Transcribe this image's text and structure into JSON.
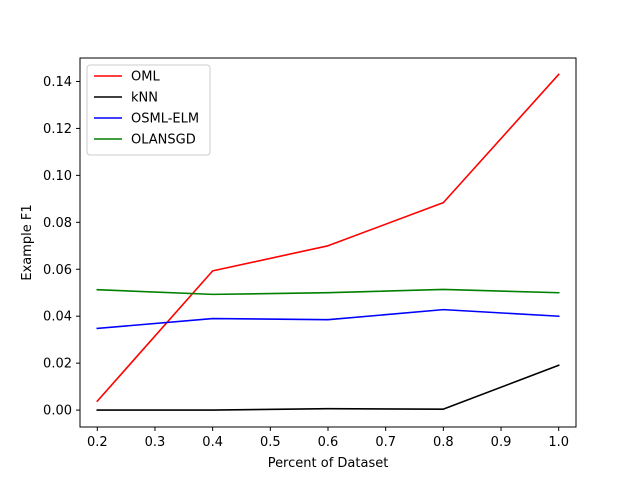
{
  "chart_data": {
    "type": "line",
    "xlabel": "Percent of Dataset",
    "ylabel": "Example F1",
    "x": [
      0.2,
      0.4,
      0.6,
      0.8,
      1.0
    ],
    "xlim": [
      0.17,
      1.03
    ],
    "ylim": [
      -0.0072,
      0.15
    ],
    "xticks": [
      0.2,
      0.3,
      0.4,
      0.5,
      0.6,
      0.7,
      0.8,
      0.9,
      1.0
    ],
    "xtick_labels": [
      "0.2",
      "0.3",
      "0.4",
      "0.5",
      "0.6",
      "0.7",
      "0.8",
      "0.9",
      "1.0"
    ],
    "yticks": [
      0.0,
      0.02,
      0.04,
      0.06,
      0.08,
      0.1,
      0.12,
      0.14
    ],
    "ytick_labels": [
      "0.00",
      "0.02",
      "0.04",
      "0.06",
      "0.08",
      "0.10",
      "0.12",
      "0.14"
    ],
    "grid": false,
    "legend_position": "top-left",
    "series": [
      {
        "name": "OML",
        "color": "#ff0000",
        "values": [
          0.0038,
          0.0593,
          0.07,
          0.0884,
          0.143
        ]
      },
      {
        "name": "kNN",
        "color": "#000000",
        "values": [
          0.0,
          0.0,
          0.0006,
          0.0004,
          0.0191
        ]
      },
      {
        "name": "OSML-ELM",
        "color": "#0000ff",
        "values": [
          0.0348,
          0.039,
          0.0385,
          0.0428,
          0.04
        ]
      },
      {
        "name": "OLANSGD",
        "color": "#008000",
        "values": [
          0.0513,
          0.0493,
          0.05,
          0.0514,
          0.05
        ]
      }
    ]
  }
}
